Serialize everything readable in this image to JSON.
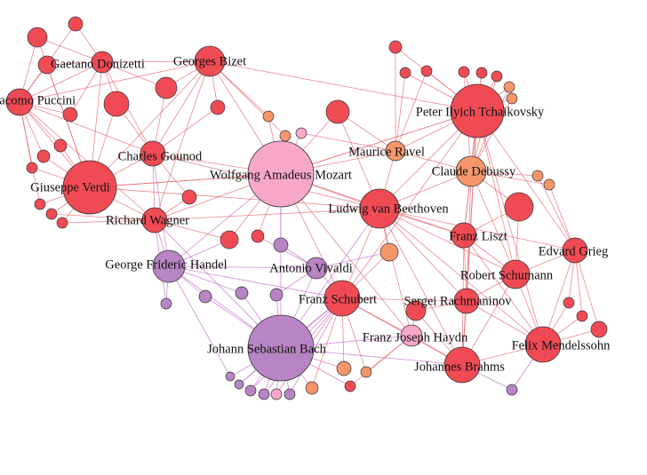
{
  "nodes": [
    {
      "label": "Gaetano Donizetti"
    },
    {
      "label": "Georges Bizet"
    },
    {
      "label": "Giacomo Puccini"
    },
    {
      "label": "Peter Ilyich Tchaikovsky"
    },
    {
      "label": "Charles Gounod"
    },
    {
      "label": "Maurice Ravel"
    },
    {
      "label": "Wolfgang Amadeus Mozart"
    },
    {
      "label": "Claude Debussy"
    },
    {
      "label": "Giuseppe Verdi"
    },
    {
      "label": "Ludwig van Beethoven"
    },
    {
      "label": "Richard Wagner"
    },
    {
      "label": "Franz Liszt"
    },
    {
      "label": "Edvard Grieg"
    },
    {
      "label": "George Frideric Handel"
    },
    {
      "label": "Antonio Vivaldi"
    },
    {
      "label": "Robert Schumann"
    },
    {
      "label": "Franz Schubert"
    },
    {
      "label": "Sergei Rachmaninov"
    },
    {
      "label": "Franz Joseph Haydn"
    },
    {
      "label": "Felix Mendelssohn"
    },
    {
      "label": "Johann Sebastian Bach"
    },
    {
      "label": "Johannes Brahms"
    }
  ]
}
